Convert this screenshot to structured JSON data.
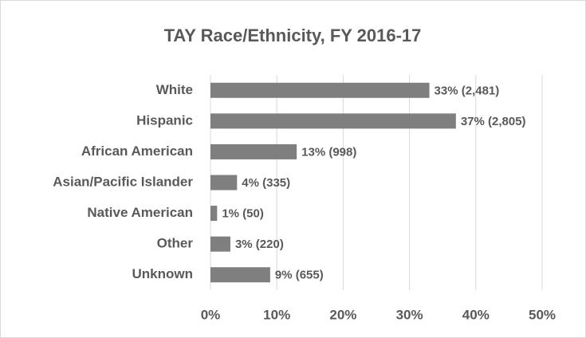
{
  "chart_data": {
    "type": "bar",
    "orientation": "horizontal",
    "title": "TAY Race/Ethnicity, FY 2016-17",
    "categories": [
      "White",
      "Hispanic",
      "African American",
      "Asian/Pacific Islander",
      "Native American",
      "Other",
      "Unknown"
    ],
    "values": [
      33,
      37,
      13,
      4,
      1,
      3,
      9
    ],
    "value_labels": [
      "33% (2,481)",
      "37% (2,805)",
      "13% (998)",
      "4% (335)",
      "1% (50)",
      "3% (220)",
      "9% (655)"
    ],
    "color": "#7f7f7f",
    "xlim": [
      0,
      50
    ],
    "xticks": [
      {
        "value": 0,
        "label": "0%"
      },
      {
        "value": 10,
        "label": "10%"
      },
      {
        "value": 20,
        "label": "20%"
      },
      {
        "value": 30,
        "label": "30%"
      },
      {
        "value": 40,
        "label": "40%"
      },
      {
        "value": 50,
        "label": "50%"
      }
    ],
    "grid": true
  }
}
